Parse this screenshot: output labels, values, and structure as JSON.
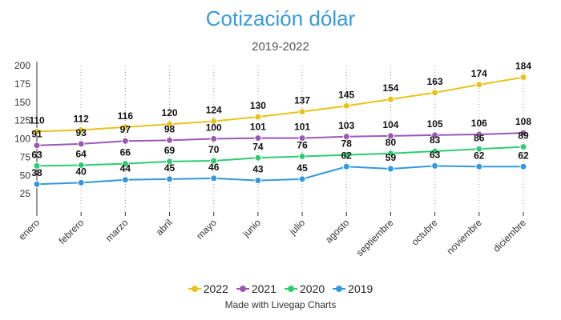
{
  "chart_data": {
    "type": "line",
    "title": "Cotización dólar",
    "subtitle": "2019-2022",
    "categories": [
      "enero",
      "febrero",
      "marzo",
      "abril",
      "mayo",
      "junio",
      "julio",
      "agosto",
      "septiembre",
      "octubre",
      "noviembre",
      "diciembre"
    ],
    "ylim": [
      0,
      200
    ],
    "yticks": [
      25,
      50,
      75,
      100,
      125,
      150,
      175,
      200
    ],
    "grid": "vertical-dotted",
    "legend_position": "bottom",
    "series": [
      {
        "name": "2022",
        "color": "#e8c31a",
        "values": [
          110,
          112,
          116,
          120,
          124,
          130,
          137,
          145,
          154,
          163,
          174,
          184
        ]
      },
      {
        "name": "2021",
        "color": "#9b59b6",
        "values": [
          91,
          93,
          97,
          98,
          100,
          101,
          101,
          103,
          104,
          105,
          106,
          108
        ]
      },
      {
        "name": "2020",
        "color": "#2ecc71",
        "values": [
          63,
          64,
          66,
          69,
          70,
          74,
          76,
          78,
          80,
          83,
          86,
          89
        ]
      },
      {
        "name": "2019",
        "color": "#3498db",
        "values": [
          38,
          40,
          44,
          45,
          46,
          43,
          45,
          62,
          59,
          63,
          62,
          62
        ]
      }
    ]
  },
  "footer": "Made with Livegap Charts"
}
